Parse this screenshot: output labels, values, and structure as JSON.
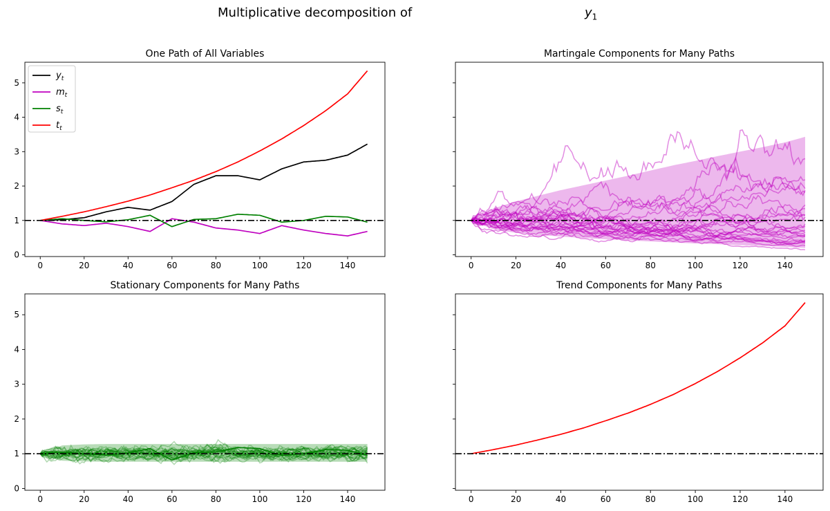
{
  "figure": {
    "suptitle_text": "Multiplicative decomposition of",
    "suptitle_var": "y",
    "suptitle_sub": "1"
  },
  "chart_data": [
    {
      "type": "line",
      "title": "One Path of All Variables",
      "xlim": [
        -7,
        157
      ],
      "ylim": [
        -0.05,
        5.6
      ],
      "xticks": [
        0,
        20,
        40,
        60,
        80,
        100,
        120,
        140
      ],
      "yticks": [
        0,
        1,
        2,
        3,
        4,
        5
      ],
      "legend": {
        "placement": "top-left",
        "entries": [
          {
            "var": "y",
            "sub": "t",
            "color": "#000000"
          },
          {
            "var": "m",
            "sub": "t",
            "color": "#bf00bf"
          },
          {
            "var": "s",
            "sub": "t",
            "color": "#008000"
          },
          {
            "var": "t",
            "sub": "t",
            "color": "#ff0000"
          }
        ]
      },
      "reference_line": 1,
      "x": [
        0,
        10,
        20,
        30,
        40,
        50,
        60,
        70,
        80,
        90,
        100,
        110,
        120,
        130,
        140,
        149
      ],
      "series": [
        {
          "name": "y_t",
          "color": "#000000",
          "values": [
            1.0,
            1.02,
            1.08,
            1.25,
            1.38,
            1.3,
            1.55,
            2.05,
            2.3,
            2.3,
            2.18,
            2.5,
            2.7,
            2.75,
            2.9,
            3.22
          ]
        },
        {
          "name": "m_t",
          "color": "#bf00bf",
          "values": [
            1.0,
            0.9,
            0.85,
            0.92,
            0.82,
            0.68,
            1.05,
            0.95,
            0.78,
            0.72,
            0.62,
            0.85,
            0.72,
            0.62,
            0.55,
            0.68
          ]
        },
        {
          "name": "s_t",
          "color": "#008000",
          "values": [
            1.0,
            1.05,
            1.0,
            0.96,
            1.02,
            1.15,
            0.82,
            1.03,
            1.05,
            1.18,
            1.15,
            0.95,
            1.0,
            1.12,
            1.1,
            0.95
          ]
        },
        {
          "name": "t_t",
          "color": "#ff0000",
          "values": [
            1.0,
            1.12,
            1.25,
            1.4,
            1.56,
            1.74,
            1.95,
            2.17,
            2.42,
            2.7,
            3.02,
            3.37,
            3.76,
            4.19,
            4.68,
            5.35
          ]
        }
      ]
    },
    {
      "type": "line",
      "title": "Martingale Components for Many Paths",
      "xlim": [
        -7,
        157
      ],
      "ylim": [
        -0.05,
        5.6
      ],
      "xticks": [
        0,
        20,
        40,
        60,
        80,
        100,
        120,
        140
      ],
      "yticks": [
        0,
        1,
        2,
        3,
        4,
        5
      ],
      "reference_line": 1,
      "x": [
        0,
        10,
        20,
        30,
        40,
        50,
        60,
        70,
        80,
        90,
        100,
        110,
        120,
        130,
        140,
        149
      ],
      "band": {
        "color": "#bf00bf",
        "upper": [
          1.0,
          1.35,
          1.55,
          1.72,
          1.88,
          2.02,
          2.16,
          2.3,
          2.45,
          2.6,
          2.73,
          2.87,
          3.0,
          3.13,
          3.27,
          3.43
        ],
        "lower": [
          1.0,
          0.74,
          0.64,
          0.58,
          0.53,
          0.49,
          0.45,
          0.42,
          0.39,
          0.36,
          0.33,
          0.31,
          0.28,
          0.26,
          0.23,
          0.2
        ]
      },
      "paths": {
        "count": 25,
        "color": "#bf00bf",
        "start": 1,
        "sigma": 0.055,
        "seed": 11
      }
    },
    {
      "type": "line",
      "title": "Stationary Components for Many Paths",
      "xlim": [
        -7,
        157
      ],
      "ylim": [
        -0.05,
        5.6
      ],
      "xticks": [
        0,
        20,
        40,
        60,
        80,
        100,
        120,
        140
      ],
      "yticks": [
        0,
        1,
        2,
        3,
        4,
        5
      ],
      "reference_line": 1,
      "x": [
        0,
        10,
        20,
        30,
        40,
        50,
        60,
        70,
        80,
        90,
        100,
        110,
        120,
        130,
        140,
        149
      ],
      "band": {
        "color": "#008000",
        "upper": [
          1.0,
          1.24,
          1.27,
          1.28,
          1.28,
          1.28,
          1.28,
          1.28,
          1.28,
          1.28,
          1.28,
          1.28,
          1.28,
          1.28,
          1.28,
          1.28
        ],
        "lower": [
          1.0,
          0.8,
          0.78,
          0.77,
          0.77,
          0.77,
          0.77,
          0.77,
          0.77,
          0.77,
          0.77,
          0.77,
          0.77,
          0.77,
          0.77,
          0.77
        ]
      },
      "paths": {
        "count": 25,
        "color": "#008000",
        "start": 1,
        "sigma": 0.05,
        "seed": 23
      },
      "highlight": {
        "color": "#008000",
        "values": [
          1.0,
          1.05,
          1.0,
          0.96,
          1.02,
          1.15,
          0.82,
          1.03,
          1.05,
          1.18,
          1.15,
          0.95,
          1.0,
          1.12,
          1.1,
          0.95
        ]
      }
    },
    {
      "type": "line",
      "title": "Trend Components for Many Paths",
      "xlim": [
        -7,
        157
      ],
      "ylim": [
        -0.05,
        5.6
      ],
      "xticks": [
        0,
        20,
        40,
        60,
        80,
        100,
        120,
        140
      ],
      "yticks": [
        0,
        1,
        2,
        3,
        4,
        5
      ],
      "reference_line": 1,
      "x": [
        0,
        10,
        20,
        30,
        40,
        50,
        60,
        70,
        80,
        90,
        100,
        110,
        120,
        130,
        140,
        149
      ],
      "series": [
        {
          "name": "t_t",
          "color": "#ff0000",
          "values": [
            1.0,
            1.12,
            1.25,
            1.4,
            1.56,
            1.74,
            1.95,
            2.17,
            2.42,
            2.7,
            3.02,
            3.37,
            3.76,
            4.19,
            4.68,
            5.35
          ]
        }
      ]
    }
  ]
}
